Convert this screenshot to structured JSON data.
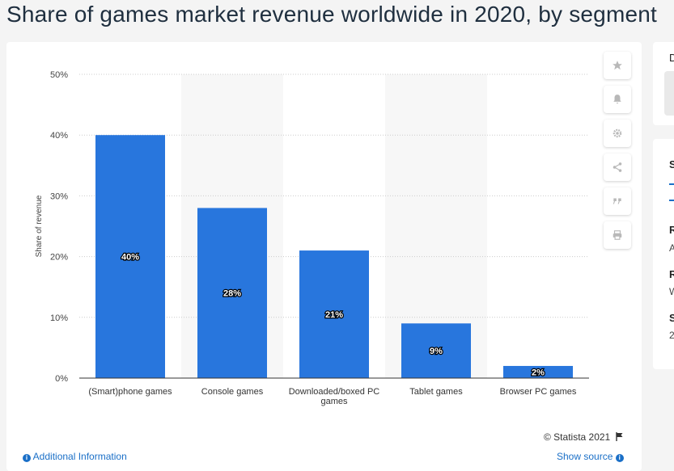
{
  "page": {
    "title": "Share of games market revenue worldwide in 2020, by segment",
    "copyright": "© Statista 2021",
    "additional_info": "Additional Information",
    "show_source": "Show source"
  },
  "toolbar": {
    "icons": [
      "star-icon",
      "bell-icon",
      "gear-icon",
      "share-icon",
      "quote-icon",
      "print-icon"
    ]
  },
  "side_panel": {
    "top_letter": "D",
    "letters": [
      "S",
      "R",
      "R",
      "S"
    ],
    "small_letters": [
      "A",
      "W",
      "2"
    ]
  },
  "colors": {
    "bar": "#2876dd",
    "band": "#f7f7f7",
    "grid": "#cccccc",
    "link": "#1a6fc7"
  },
  "chart_data": {
    "type": "bar",
    "categories": [
      "(Smart)phone games",
      "Console games",
      "Downloaded/boxed PC games",
      "Tablet games",
      "Browser PC games"
    ],
    "values": [
      40,
      28,
      21,
      9,
      2
    ],
    "data_labels": [
      "40%",
      "28%",
      "21%",
      "9%",
      "2%"
    ],
    "ylabel": "Share of revenue",
    "ylim": [
      0,
      50
    ],
    "yticks": [
      "0%",
      "10%",
      "20%",
      "30%",
      "40%",
      "50%"
    ],
    "grid": true,
    "legend": "none"
  }
}
